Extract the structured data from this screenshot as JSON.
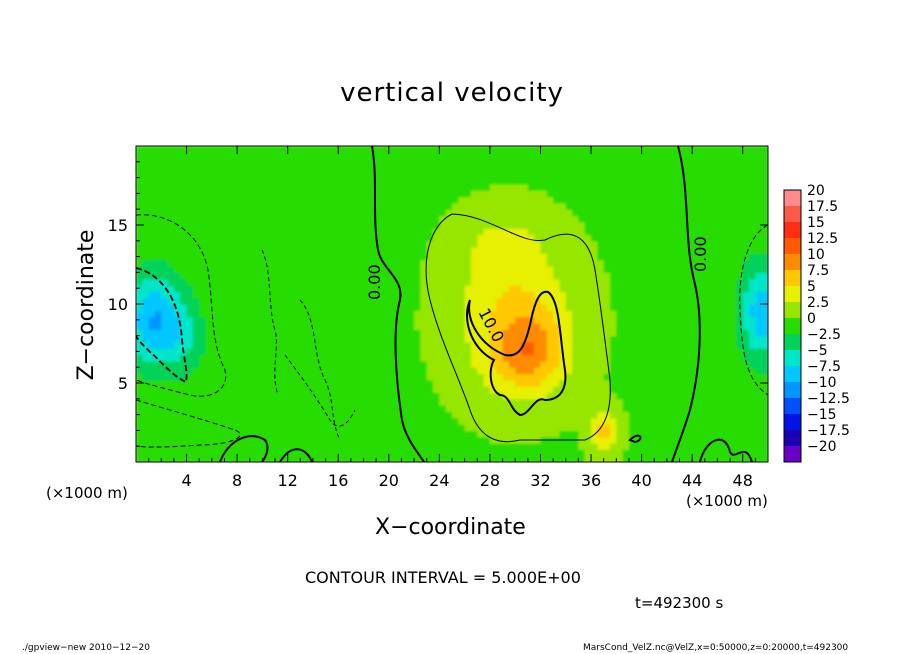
{
  "chart_data": {
    "type": "heatmap",
    "title": "vertical velocity",
    "xlabel": "X−coordinate",
    "ylabel": "Z−coordinate",
    "x_unit_label": "(×1000 m)",
    "xlim": [
      0,
      50
    ],
    "ylim": [
      0,
      20
    ],
    "x_ticks": [
      4,
      8,
      12,
      16,
      20,
      24,
      28,
      32,
      36,
      40,
      44,
      48
    ],
    "y_ticks": [
      5,
      10,
      15
    ],
    "contour_labels": [
      "0.00",
      "10.0",
      "0.00"
    ],
    "contour_interval_text": "CONTOUR INTERVAL = 5.000E+00",
    "time_text": "t=492300 s",
    "colorbar": {
      "levels": [
        "20",
        "17.5",
        "15",
        "12.5",
        "10",
        "7.5",
        "5",
        "2.5",
        "0",
        "−2.5",
        "−5",
        "−7.5",
        "−10",
        "−12.5",
        "−15",
        "−17.5",
        "−20"
      ],
      "colors": [
        "#ff8c8c",
        "#ff5a46",
        "#ff2d14",
        "#ff5a00",
        "#ff8c00",
        "#ffc800",
        "#e6f000",
        "#96e600",
        "#28dc00",
        "#00d25a",
        "#00e6c8",
        "#00c8ff",
        "#0096ff",
        "#0050ff",
        "#0014e6",
        "#1e00b4",
        "#6a00c8"
      ]
    },
    "field": {
      "background": 0.8,
      "features": [
        {
          "x": 1.5,
          "z": 9.0,
          "sx": 2.5,
          "sz": 3.0,
          "value": -9.5
        },
        {
          "x": 4.0,
          "z": 7.5,
          "sx": 2.0,
          "sz": 2.5,
          "value": -2.5
        },
        {
          "x": 49.5,
          "z": 9.5,
          "sx": 1.8,
          "sz": 3.2,
          "value": -8.5
        },
        {
          "x": 13.0,
          "z": 6.5,
          "sx": 3.0,
          "sz": 2.5,
          "value": -1.5
        },
        {
          "x": 30.0,
          "z": 9.0,
          "sx": 5.0,
          "sz": 5.0,
          "value": 5.0
        },
        {
          "x": 31.0,
          "z": 7.0,
          "sx": 2.8,
          "sz": 2.5,
          "value": 6.5
        },
        {
          "x": 29.0,
          "z": 13.5,
          "sx": 3.5,
          "sz": 2.5,
          "value": 2.5
        },
        {
          "x": 37.0,
          "z": 2.0,
          "sx": 1.2,
          "sz": 1.5,
          "value": 6.0
        }
      ]
    }
  },
  "footer": {
    "left": "./gpview−new  2010−12−20",
    "right": "MarsCond_VelZ.nc@VelZ,x=0:50000,z=0:20000,t=492300"
  }
}
